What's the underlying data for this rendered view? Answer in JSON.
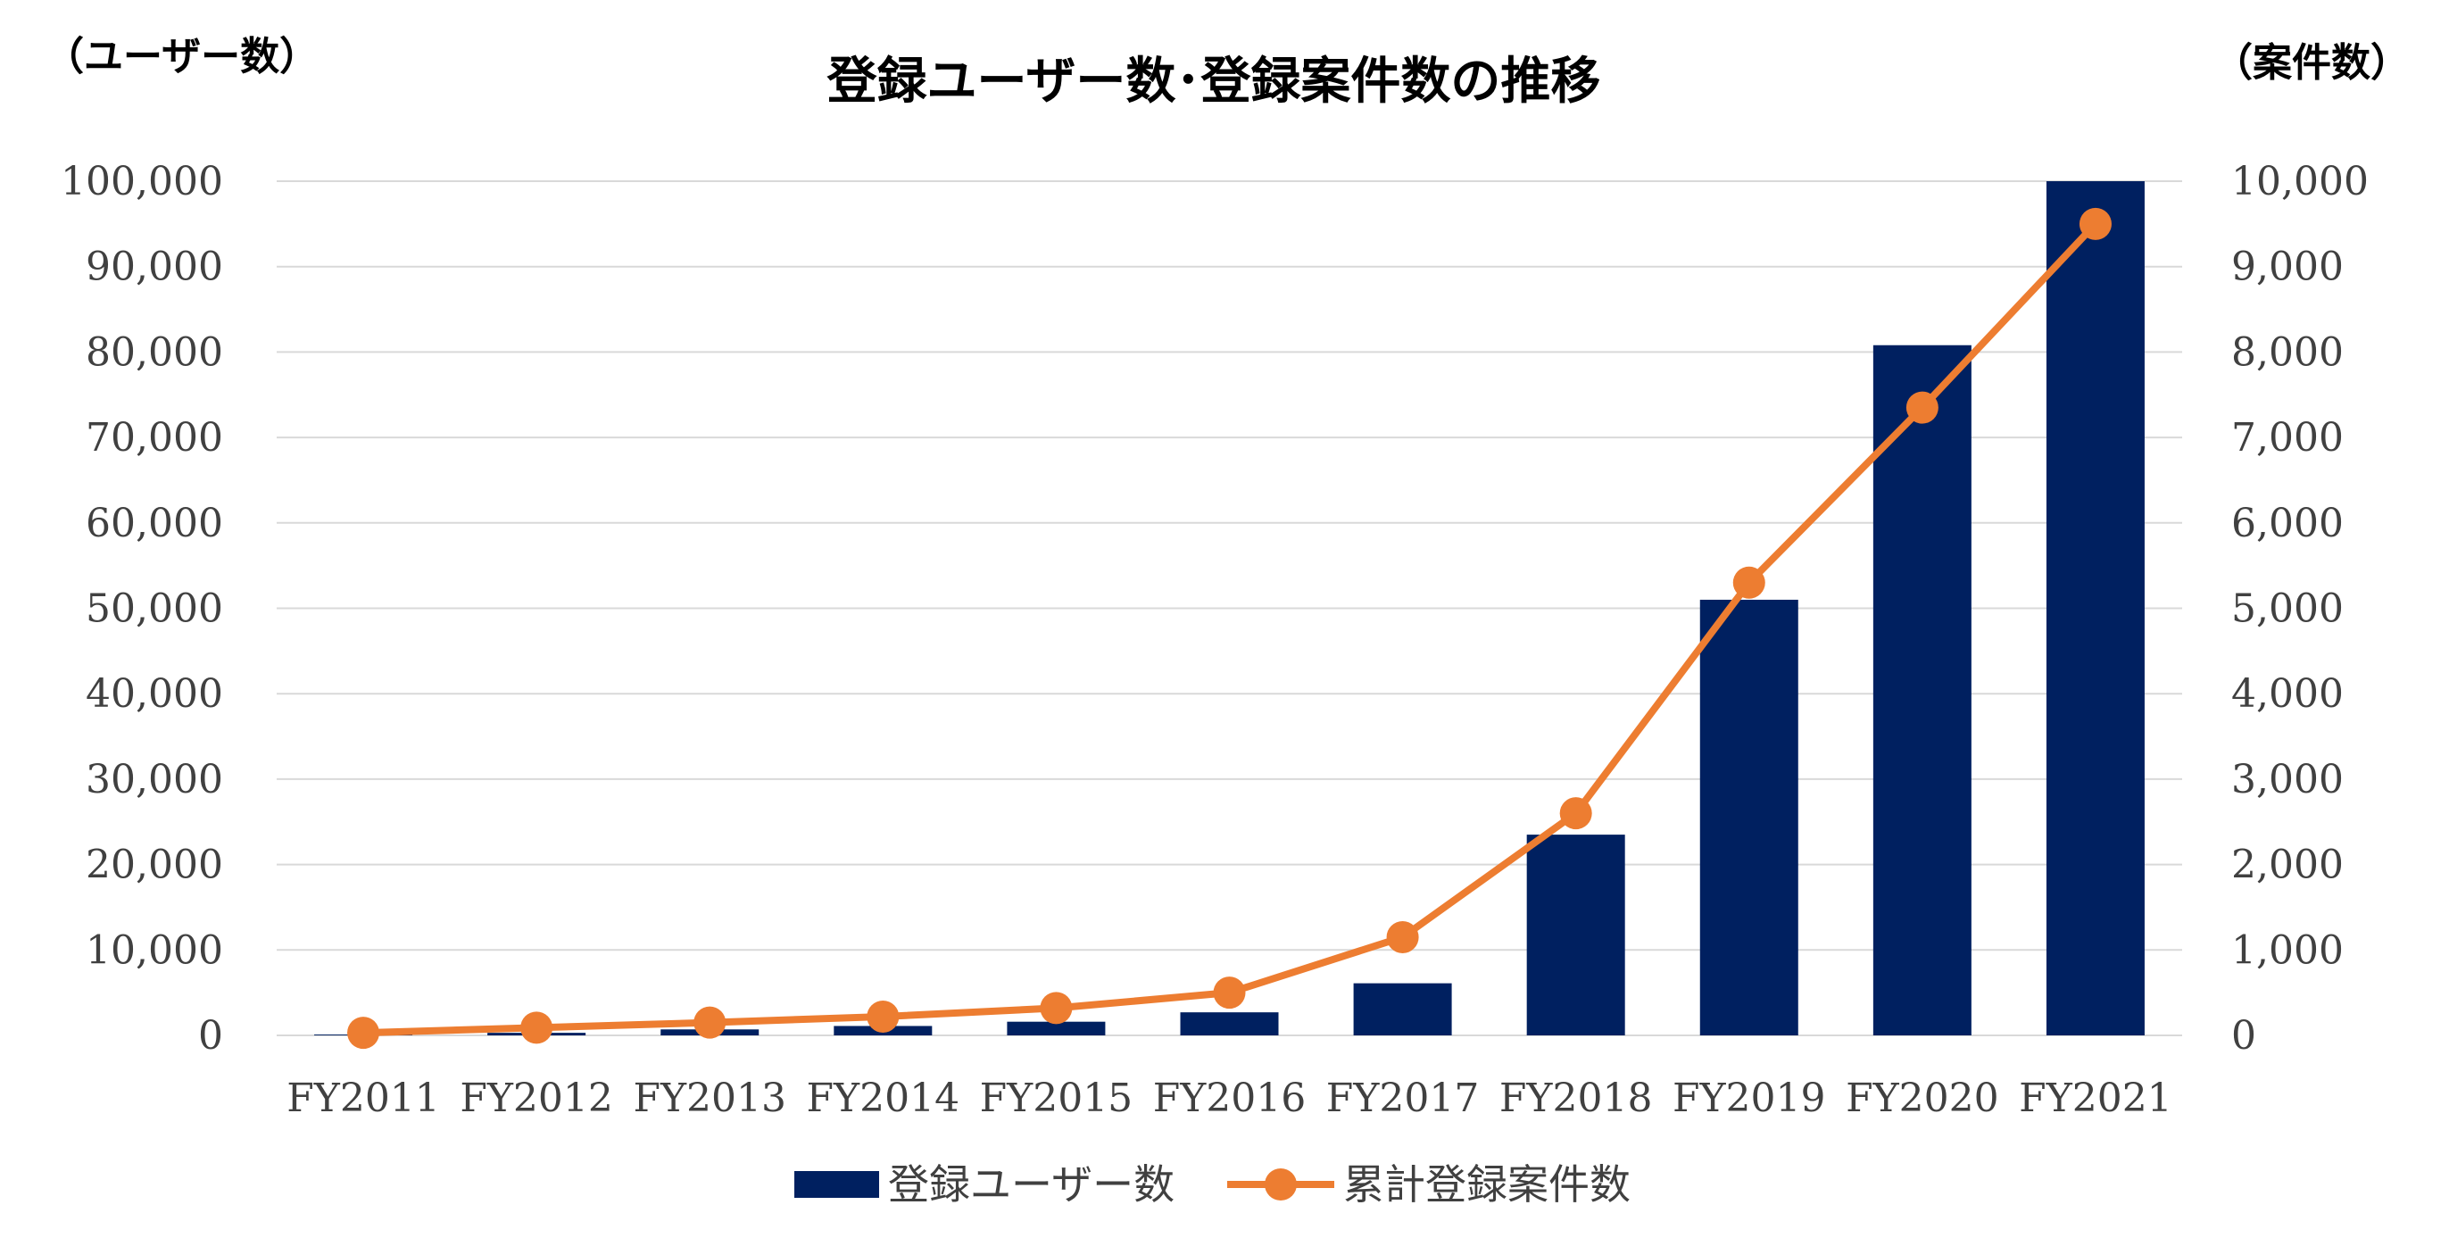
{
  "chart_data": {
    "type": "bar+line",
    "title": "登録ユーザー数･登録案件数の推移",
    "y_left_label": "（ユーザー数）",
    "y_right_label": "（案件数）",
    "categories": [
      "FY2011",
      "FY2012",
      "FY2013",
      "FY2014",
      "FY2015",
      "FY2016",
      "FY2017",
      "FY2018",
      "FY2019",
      "FY2020",
      "FY2021"
    ],
    "y_left": {
      "min": 0,
      "max": 100000,
      "step": 10000,
      "ticks": [
        "0",
        "10,000",
        "20,000",
        "30,000",
        "40,000",
        "50,000",
        "60,000",
        "70,000",
        "80,000",
        "90,000",
        "100,000"
      ]
    },
    "y_right": {
      "min": 0,
      "max": 10000,
      "step": 1000,
      "ticks": [
        "0",
        "1,000",
        "2,000",
        "3,000",
        "4,000",
        "5,000",
        "6,000",
        "7,000",
        "8,000",
        "9,000",
        "10,000"
      ]
    },
    "grid": true,
    "legend_position": "bottom",
    "series": [
      {
        "name": "登録ユーザー数",
        "type": "bar",
        "axis": "left",
        "color": "#002060",
        "values": [
          100,
          300,
          700,
          1100,
          1600,
          2700,
          6100,
          23500,
          51000,
          80800,
          100000
        ]
      },
      {
        "name": "累計登録案件数",
        "type": "line",
        "axis": "right",
        "color": "#ED7D31",
        "values": [
          30,
          90,
          150,
          220,
          320,
          500,
          1150,
          2600,
          5300,
          7350,
          9500
        ]
      }
    ]
  }
}
